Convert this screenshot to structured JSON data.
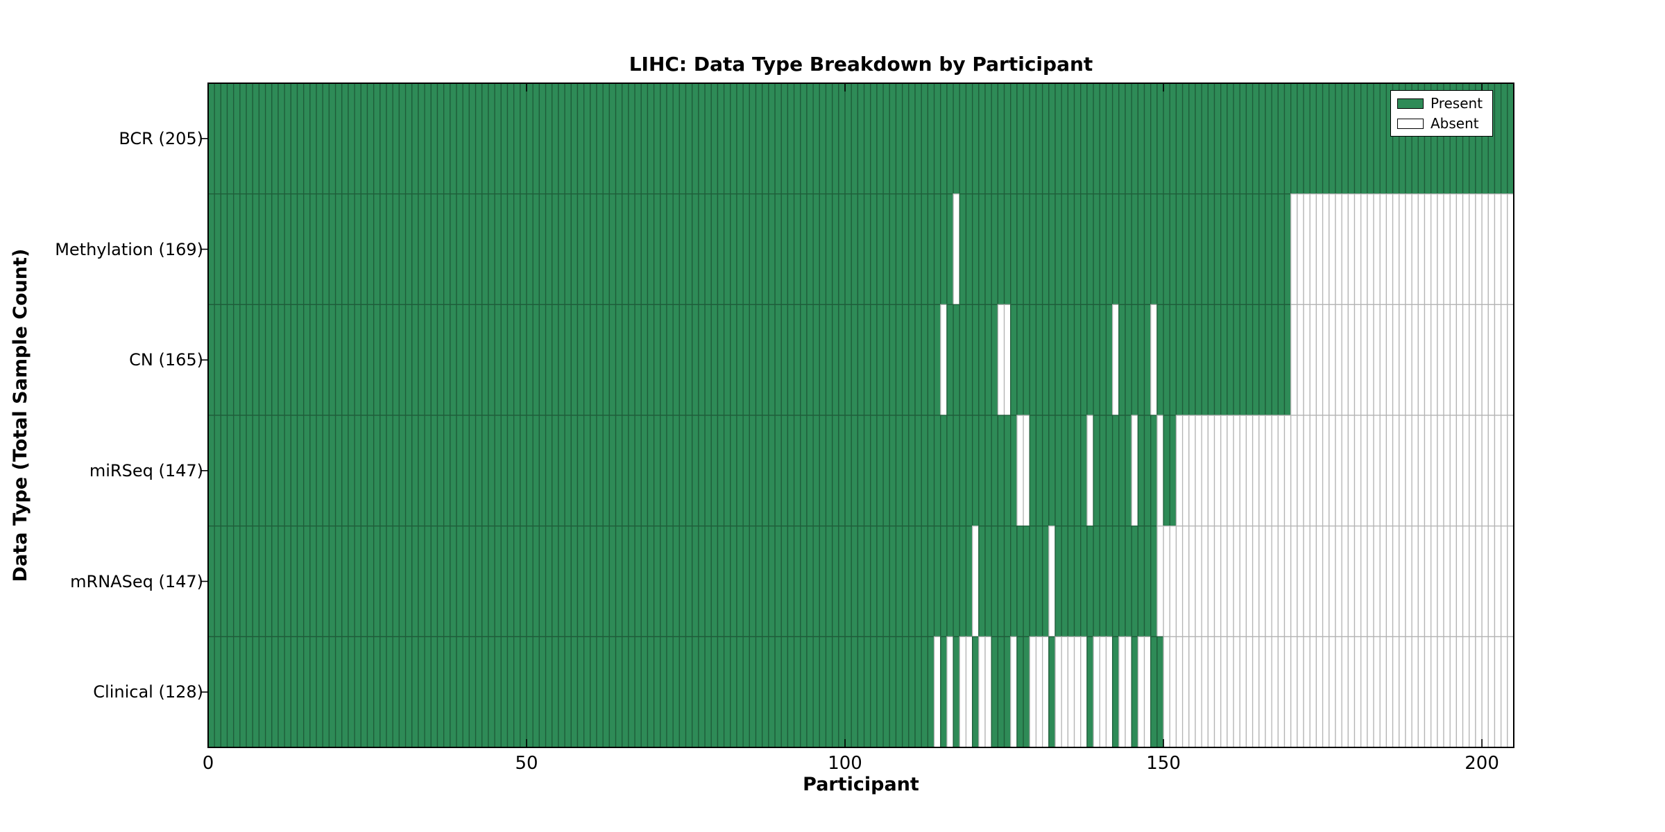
{
  "title": "LIHC: Data Type Breakdown by Participant",
  "colors": {
    "present_fill": "#2e8b57",
    "present_edge": "#1e5c39",
    "absent_fill": "#ffffff",
    "absent_edge": "#b4b4b4",
    "axis": "#000000",
    "background": "#ffffff"
  },
  "legend": {
    "present_label": "Present",
    "absent_label": "Absent"
  },
  "chart_data": {
    "type": "heatmap",
    "title": "LIHC: Data Type Breakdown by Participant",
    "xlabel": "Participant",
    "ylabel": "Data Type (Total Sample Count)",
    "xlim": [
      0,
      205
    ],
    "n_participants": 205,
    "x_ticks": [
      0,
      50,
      100,
      150,
      200
    ],
    "grid": false,
    "legend_position": "upper right",
    "legend_entries": [
      "Present",
      "Absent"
    ],
    "cell_states": [
      "present",
      "absent"
    ],
    "rows": [
      {
        "label": "BCR (205)",
        "name": "BCR",
        "total": 205,
        "present_through": 204,
        "absent_indices": []
      },
      {
        "label": "Methylation (169)",
        "name": "Methylation",
        "total": 169,
        "present_through": 169,
        "absent_indices": [
          117
        ]
      },
      {
        "label": "CN (165)",
        "name": "CN",
        "total": 165,
        "present_through": 169,
        "absent_indices": [
          115,
          124,
          125,
          142,
          148
        ]
      },
      {
        "label": "miRSeq (147)",
        "name": "miRSeq",
        "total": 147,
        "present_through": 151,
        "absent_indices": [
          127,
          128,
          138,
          145,
          149
        ]
      },
      {
        "label": "mRNASeq (147)",
        "name": "mRNASeq",
        "total": 147,
        "present_through": 148,
        "absent_indices": [
          120,
          132
        ]
      },
      {
        "label": "Clinical (128)",
        "name": "Clinical",
        "total": 128,
        "present_through": 149,
        "absent_indices": [
          114,
          116,
          118,
          119,
          121,
          122,
          126,
          129,
          130,
          131,
          133,
          134,
          135,
          136,
          137,
          139,
          140,
          141,
          143,
          144,
          146,
          147
        ]
      }
    ]
  }
}
